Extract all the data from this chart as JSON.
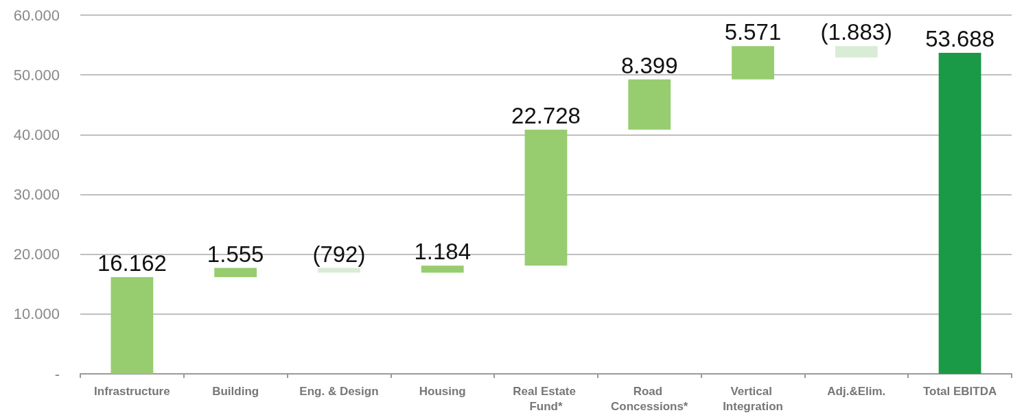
{
  "chart_data": {
    "type": "bar",
    "categories": [
      "Infrastructure",
      "Building",
      "Eng. & Design",
      "Housing",
      "Real Estate Fund*",
      "Road Concessions*",
      "Vertical Integration",
      "Adj.&Elim.",
      "Total EBITDA"
    ],
    "values": [
      16162,
      1555,
      -792,
      1184,
      22728,
      8399,
      5571,
      -1883,
      53688
    ],
    "base": [
      0,
      16162,
      17717,
      16925,
      18109,
      40837,
      49236,
      54807,
      0
    ],
    "colors": [
      "#97cd6f",
      "#97cd6f",
      "#d9ecd5",
      "#97cd6f",
      "#97cd6f",
      "#97cd6f",
      "#97cd6f",
      "#d9ecd5",
      "#1a9a46"
    ],
    "value_labels": [
      "16.162",
      "1.555",
      "(792)",
      "1.184",
      "22.728",
      "8.399",
      "5.571",
      "(1.883)",
      "53.688"
    ],
    "ylim": [
      0,
      60000
    ],
    "yticks": [
      {
        "value": 0,
        "label": "-"
      },
      {
        "value": 10000,
        "label": "10.000"
      },
      {
        "value": 20000,
        "label": "20.000"
      },
      {
        "value": 30000,
        "label": "30.000"
      },
      {
        "value": 40000,
        "label": "40.000"
      },
      {
        "value": 50000,
        "label": "50.000"
      },
      {
        "value": 60000,
        "label": "60.000"
      }
    ],
    "grid": "y"
  }
}
